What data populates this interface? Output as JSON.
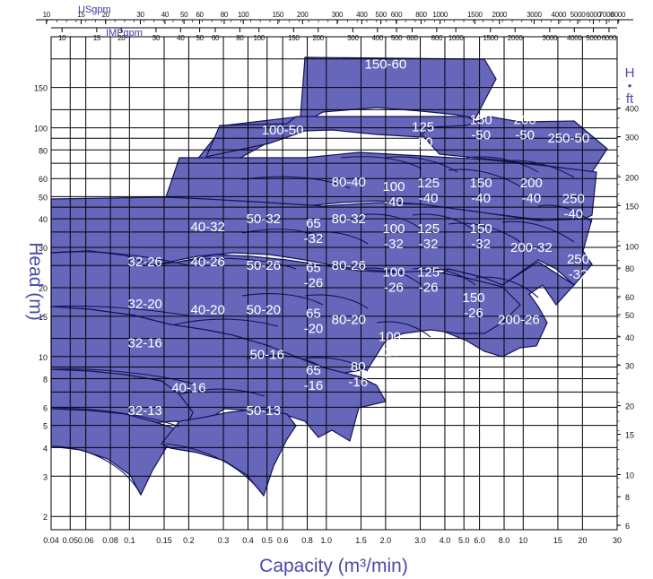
{
  "chart_data": {
    "type": "area",
    "title": "",
    "xlabel": "Capacity (m³/min)",
    "ylabel": "Head (m)",
    "right_axis_label": [
      "H",
      "•",
      "ft"
    ],
    "top_axis_1_label": "USgpm",
    "top_axis_2_label": "IMPgpm",
    "x_scale": "log",
    "y_scale": "log",
    "xlim": [
      0.04,
      30
    ],
    "ylim": [
      1.75,
      250
    ],
    "grid": true,
    "x_ticks": [
      "0.04",
      "0.05",
      "0.06",
      "0.08",
      "0.1",
      "0.15",
      "0.2",
      "0.3",
      "0.4",
      "0.5",
      "0.6",
      "0.8",
      "1.0",
      "1.5",
      "2.0",
      "3.0",
      "4.0",
      "5.0",
      "6.0",
      "8.0",
      "10",
      "15",
      "20",
      "30"
    ],
    "x_tick_values": [
      0.04,
      0.05,
      0.06,
      0.08,
      0.1,
      0.15,
      0.2,
      0.3,
      0.4,
      0.5,
      0.6,
      0.8,
      1.0,
      1.5,
      2.0,
      3.0,
      4.0,
      5.0,
      6.0,
      8.0,
      10,
      15,
      20,
      30
    ],
    "y_ticks": [
      "2",
      "3",
      "4",
      "5",
      "6",
      "8",
      "10",
      "15",
      "20",
      "30",
      "40",
      "50",
      "60",
      "80",
      "100",
      "150"
    ],
    "y_tick_values": [
      2,
      3,
      4,
      5,
      6,
      8,
      10,
      15,
      20,
      30,
      40,
      50,
      60,
      80,
      100,
      150
    ],
    "usgpm_ticks": [
      "10",
      "15",
      "20",
      "30",
      "40",
      "50",
      "60",
      "80",
      "100",
      "150",
      "200",
      "300",
      "400",
      "500",
      "600",
      "800",
      "1000",
      "1500",
      "2000",
      "3000",
      "4000",
      "5000",
      "6000",
      "7000",
      "8000"
    ],
    "usgpm_values": [
      10,
      15,
      20,
      30,
      40,
      50,
      60,
      80,
      100,
      150,
      200,
      300,
      400,
      500,
      600,
      800,
      1000,
      1500,
      2000,
      3000,
      4000,
      5000,
      6000,
      7000,
      8000
    ],
    "impgpm_ticks": [
      "10",
      "15",
      "20",
      "30",
      "40",
      "50",
      "60",
      "80",
      "100",
      "150",
      "200",
      "300",
      "400",
      "500",
      "600",
      "800",
      "1000",
      "1500",
      "2000",
      "3000",
      "4000",
      "5000",
      "6000"
    ],
    "impgpm_values": [
      10,
      15,
      20,
      30,
      40,
      50,
      60,
      80,
      100,
      150,
      200,
      300,
      400,
      500,
      600,
      800,
      1000,
      1500,
      2000,
      3000,
      4000,
      5000,
      6000
    ],
    "ft_ticks": [
      "6",
      "8",
      "10",
      "15",
      "20",
      "30",
      "40",
      "50",
      "60",
      "80",
      "100",
      "150",
      "200",
      "300",
      "400"
    ],
    "ft_values": [
      6,
      8,
      10,
      15,
      20,
      30,
      40,
      50,
      60,
      80,
      100,
      150,
      200,
      300,
      400
    ],
    "series": [
      {
        "name": "150-60",
        "label": [
          "150-60"
        ],
        "label_at": [
          2.0,
          190
        ]
      },
      {
        "name": "100-50",
        "label": [
          "100-50"
        ],
        "label_at": [
          0.6,
          98
        ]
      },
      {
        "name": "125-50",
        "label": [
          "125",
          "-50"
        ],
        "label_at": [
          3.1,
          95
        ]
      },
      {
        "name": "150-50",
        "label": [
          "150",
          "-50"
        ],
        "label_at": [
          6.1,
          102
        ]
      },
      {
        "name": "200-50",
        "label": [
          "200",
          "-50"
        ],
        "label_at": [
          10.2,
          102
        ]
      },
      {
        "name": "250-50",
        "label": [
          "250-50"
        ],
        "label_at": [
          17,
          90
        ]
      },
      {
        "name": "80-40",
        "label": [
          "80-40"
        ],
        "label_at": [
          1.3,
          58
        ]
      },
      {
        "name": "100-40",
        "label": [
          "100",
          "-40"
        ],
        "label_at": [
          2.2,
          52
        ]
      },
      {
        "name": "125-40",
        "label": [
          "125",
          "-40"
        ],
        "label_at": [
          3.3,
          54
        ]
      },
      {
        "name": "150-40",
        "label": [
          "150",
          "-40"
        ],
        "label_at": [
          6.1,
          54
        ]
      },
      {
        "name": "200-40",
        "label": [
          "200",
          "-40"
        ],
        "label_at": [
          11,
          54
        ]
      },
      {
        "name": "250-40",
        "label": [
          "250",
          "-40"
        ],
        "label_at": [
          18,
          46
        ]
      },
      {
        "name": "40-32",
        "label": [
          "40-32"
        ],
        "label_at": [
          0.25,
          37
        ]
      },
      {
        "name": "50-32",
        "label": [
          "50-32"
        ],
        "label_at": [
          0.48,
          40
        ]
      },
      {
        "name": "65-32",
        "label": [
          "65",
          "-32"
        ],
        "label_at": [
          0.86,
          36
        ]
      },
      {
        "name": "80-32",
        "label": [
          "80-32"
        ],
        "label_at": [
          1.3,
          40
        ]
      },
      {
        "name": "100-32",
        "label": [
          "100",
          "-32"
        ],
        "label_at": [
          2.2,
          34
        ]
      },
      {
        "name": "125-32",
        "label": [
          "125",
          "-32"
        ],
        "label_at": [
          3.3,
          34
        ]
      },
      {
        "name": "150-32",
        "label": [
          "150",
          "-32"
        ],
        "label_at": [
          6.1,
          34
        ]
      },
      {
        "name": "200-32",
        "label": [
          "200-32"
        ],
        "label_at": [
          11,
          30
        ]
      },
      {
        "name": "250-32",
        "label": [
          "250",
          "-32"
        ],
        "label_at": [
          19,
          25
        ]
      },
      {
        "name": "32-26",
        "label": [
          "32-26"
        ],
        "label_at": [
          0.12,
          26
        ]
      },
      {
        "name": "40-26",
        "label": [
          "40-26"
        ],
        "label_at": [
          0.25,
          26
        ]
      },
      {
        "name": "50-26",
        "label": [
          "50-26"
        ],
        "label_at": [
          0.48,
          25
        ]
      },
      {
        "name": "65-26",
        "label": [
          "65",
          "-26"
        ],
        "label_at": [
          0.86,
          23
        ]
      },
      {
        "name": "80-26",
        "label": [
          "80-26"
        ],
        "label_at": [
          1.3,
          25
        ]
      },
      {
        "name": "100-26",
        "label": [
          "100",
          "-26"
        ],
        "label_at": [
          2.2,
          22
        ]
      },
      {
        "name": "125-26",
        "label": [
          "125",
          "-26"
        ],
        "label_at": [
          3.3,
          22
        ]
      },
      {
        "name": "150-26",
        "label": [
          "150",
          "-26"
        ],
        "label_at": [
          5.6,
          17
        ]
      },
      {
        "name": "200-26",
        "label": [
          "200-26"
        ],
        "label_at": [
          9.5,
          14.5
        ]
      },
      {
        "name": "32-20",
        "label": [
          "32-20"
        ],
        "label_at": [
          0.12,
          17
        ]
      },
      {
        "name": "40-20",
        "label": [
          "40-20"
        ],
        "label_at": [
          0.25,
          16
        ]
      },
      {
        "name": "50-20",
        "label": [
          "50-20"
        ],
        "label_at": [
          0.48,
          16
        ]
      },
      {
        "name": "65-20",
        "label": [
          "65",
          "-20"
        ],
        "label_at": [
          0.86,
          14.5
        ]
      },
      {
        "name": "80-20",
        "label": [
          "80-20"
        ],
        "label_at": [
          1.3,
          14.5
        ]
      },
      {
        "name": "100-20",
        "label": [
          "100",
          "-20"
        ],
        "label_at": [
          2.1,
          11.5
        ]
      },
      {
        "name": "32-16",
        "label": [
          "32-16"
        ],
        "label_at": [
          0.12,
          11.5
        ]
      },
      {
        "name": "40-16",
        "label": [
          "40-16"
        ],
        "label_at": [
          0.2,
          7.3
        ]
      },
      {
        "name": "50-16",
        "label": [
          "50-16"
        ],
        "label_at": [
          0.5,
          10.2
        ]
      },
      {
        "name": "65-16",
        "label": [
          "65",
          "-16"
        ],
        "label_at": [
          0.86,
          8.2
        ]
      },
      {
        "name": "80-16",
        "label": [
          "80",
          "-16"
        ],
        "label_at": [
          1.45,
          8.5
        ]
      },
      {
        "name": "32-13",
        "label": [
          "32-13"
        ],
        "label_at": [
          0.12,
          5.8
        ]
      },
      {
        "name": "50-13",
        "label": [
          "50-13"
        ],
        "label_at": [
          0.48,
          5.8
        ]
      }
    ]
  }
}
